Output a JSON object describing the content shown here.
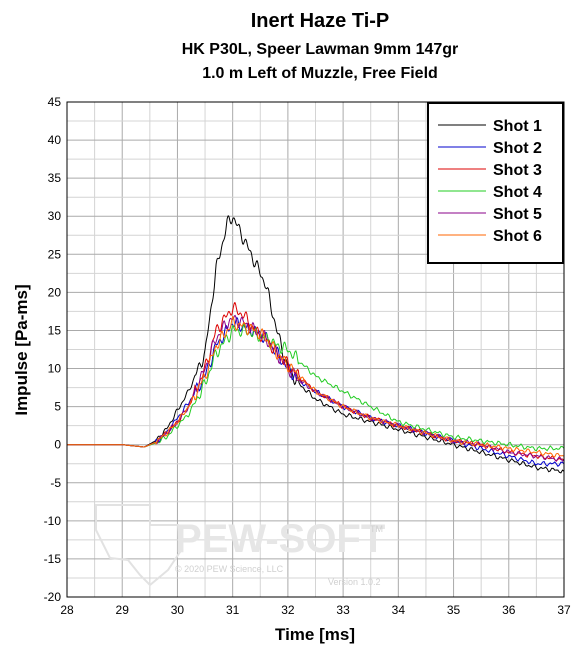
{
  "chart_data": {
    "type": "line",
    "title": "Inert Haze Ti-P",
    "subtitle": "HK P30L, Speer Lawman 9mm 147gr",
    "subtitle2": "1.0 m Left of Muzzle, Free Field",
    "xlabel": "Time [ms]",
    "ylabel": "Impulse [Pa-ms]",
    "xlim": [
      28,
      37
    ],
    "ylim": [
      -20,
      45
    ],
    "x_ticks": [
      "28",
      "29",
      "30",
      "31",
      "32",
      "33",
      "34",
      "35",
      "36",
      "37"
    ],
    "y_ticks": [
      "45",
      "40",
      "35",
      "30",
      "25",
      "20",
      "15",
      "10",
      "5",
      "0",
      "-5",
      "-10",
      "-15",
      "-20"
    ],
    "grid": true,
    "legend_position": "top-right",
    "series": [
      {
        "name": "Shot 1",
        "color": "#000000",
        "x": [
          28,
          29,
          29.4,
          29.6,
          29.8,
          30,
          30.2,
          30.5,
          30.7,
          30.9,
          31,
          31.2,
          31.4,
          31.6,
          31.8,
          32,
          32.2,
          32.5,
          33,
          33.5,
          34,
          34.5,
          35,
          35.5,
          36,
          36.5,
          37
        ],
        "y": [
          0,
          0,
          -0.3,
          0.5,
          2,
          4.5,
          7,
          12,
          23,
          29,
          30,
          27,
          24,
          21,
          15,
          10,
          8,
          6,
          4,
          3,
          2,
          1,
          0,
          -1,
          -2,
          -3,
          -3.5
        ]
      },
      {
        "name": "Shot 2",
        "color": "#0000cc",
        "x": [
          28,
          29,
          29.4,
          29.6,
          29.8,
          30,
          30.2,
          30.5,
          30.7,
          30.9,
          31,
          31.2,
          31.4,
          31.6,
          31.8,
          32,
          32.2,
          32.5,
          33,
          33.5,
          34,
          34.5,
          35,
          35.5,
          36,
          36.5,
          37
        ],
        "y": [
          0,
          0,
          -0.3,
          0.3,
          1.5,
          3.5,
          5.5,
          9,
          13,
          15,
          16,
          15.5,
          15,
          14,
          12,
          10,
          8.5,
          7,
          5,
          3.5,
          2.5,
          1.5,
          0.5,
          -0.5,
          -1.5,
          -2.5,
          -2.5
        ]
      },
      {
        "name": "Shot 3",
        "color": "#dd0000",
        "x": [
          28,
          29,
          29.4,
          29.6,
          29.8,
          30,
          30.2,
          30.5,
          30.7,
          30.9,
          31,
          31.2,
          31.4,
          31.6,
          31.8,
          32,
          32.2,
          32.5,
          33,
          33.5,
          34,
          34.5,
          35,
          35.5,
          36,
          36.5,
          37
        ],
        "y": [
          0,
          0,
          -0.3,
          0.3,
          1.5,
          3,
          5,
          10,
          15,
          17,
          18,
          17,
          15,
          14,
          12,
          10.5,
          9,
          7,
          5,
          3.5,
          2.5,
          1.5,
          0.5,
          0,
          -1,
          -1.5,
          -2
        ]
      },
      {
        "name": "Shot 4",
        "color": "#22cc22",
        "x": [
          28,
          29,
          29.4,
          29.6,
          29.8,
          30,
          30.2,
          30.5,
          30.7,
          30.9,
          31,
          31.2,
          31.4,
          31.6,
          31.8,
          32,
          32.2,
          32.5,
          33,
          33.5,
          34,
          34.5,
          35,
          35.5,
          36,
          36.5,
          37
        ],
        "y": [
          0,
          0,
          -0.3,
          0.2,
          1,
          2.5,
          4,
          8,
          12,
          14,
          15,
          15,
          14.5,
          14,
          13,
          12.5,
          11,
          9,
          7,
          5,
          3,
          2,
          1,
          0.5,
          0,
          -0.5,
          -0.5
        ]
      },
      {
        "name": "Shot 5",
        "color": "#880088",
        "x": [
          28,
          29,
          29.4,
          29.6,
          29.8,
          30,
          30.2,
          30.5,
          30.7,
          30.9,
          31,
          31.2,
          31.4,
          31.6,
          31.8,
          32,
          32.2,
          32.5,
          33,
          33.5,
          34,
          34.5,
          35,
          35.5,
          36,
          36.5,
          37
        ],
        "y": [
          0,
          0,
          -0.3,
          0.3,
          1.5,
          3,
          5,
          10,
          14,
          16,
          16.5,
          16,
          15,
          14,
          12,
          10,
          8.5,
          7,
          5,
          3.5,
          2.5,
          1.5,
          0.5,
          0,
          -1,
          -1.5,
          -2
        ]
      },
      {
        "name": "Shot 6",
        "color": "#ff6600",
        "x": [
          28,
          29,
          29.4,
          29.6,
          29.8,
          30,
          30.2,
          30.5,
          30.7,
          30.9,
          31,
          31.2,
          31.4,
          31.6,
          31.8,
          32,
          32.2,
          32.5,
          33,
          33.5,
          34,
          34.5,
          35,
          35.5,
          36,
          36.5,
          37
        ],
        "y": [
          0,
          0,
          -0.3,
          0.3,
          1.5,
          3,
          5,
          9,
          13,
          15,
          16,
          15.5,
          15,
          14,
          12,
          10.5,
          9,
          7,
          5,
          3.5,
          2.5,
          1.5,
          0.5,
          0,
          -0.5,
          -1,
          -1.5
        ]
      }
    ]
  },
  "watermark": {
    "logo_text": "PEW-SOFT",
    "trademark": "TM",
    "copyright": "© 2020 PEW Science, LLC",
    "version": "Version 1.0.2"
  }
}
